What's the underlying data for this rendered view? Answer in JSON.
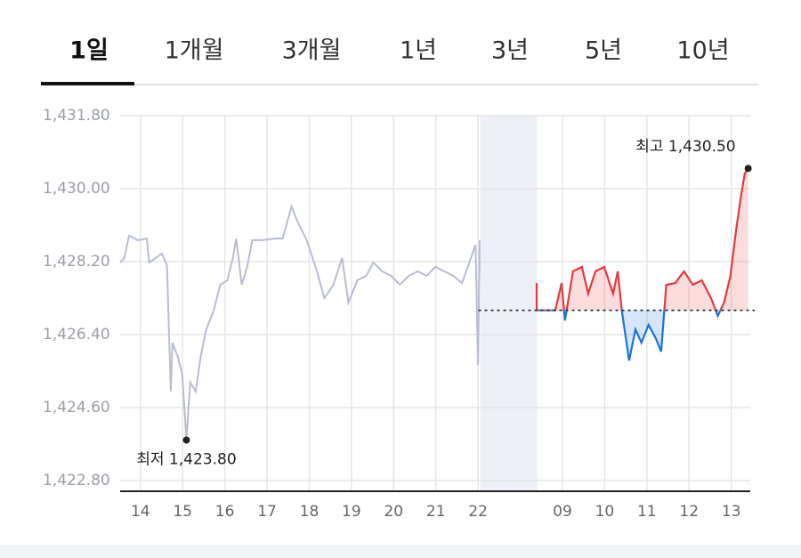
{
  "tabs": [
    "1일",
    "1개월",
    "3개월",
    "1년",
    "3년",
    "5년",
    "10년"
  ],
  "active_tab": 0,
  "chart_data": {
    "type": "line",
    "ylim": [
      1422.8,
      1431.8
    ],
    "yticks": [
      {
        "value": 1422.8,
        "label": "1,422.80"
      },
      {
        "value": 1424.6,
        "label": "1,424.60"
      },
      {
        "value": 1426.4,
        "label": "1,426.40"
      },
      {
        "value": 1428.2,
        "label": "1,428.20"
      },
      {
        "value": 1430.0,
        "label": "1,430.00"
      },
      {
        "value": 1431.8,
        "label": "1,431.80"
      }
    ],
    "xlim": [
      -0.48,
      14.45
    ],
    "xticks": [
      {
        "value": 0,
        "label": "14"
      },
      {
        "value": 1,
        "label": "15"
      },
      {
        "value": 2,
        "label": "16"
      },
      {
        "value": 3,
        "label": "17"
      },
      {
        "value": 4,
        "label": "18"
      },
      {
        "value": 5,
        "label": "19"
      },
      {
        "value": 6,
        "label": "20"
      },
      {
        "value": 7,
        "label": "21"
      },
      {
        "value": 8,
        "label": "22"
      },
      {
        "value": 10,
        "label": "09"
      },
      {
        "value": 11,
        "label": "10"
      },
      {
        "value": 12,
        "label": "11"
      },
      {
        "value": 13,
        "label": "12"
      },
      {
        "value": 14,
        "label": "13"
      }
    ],
    "grid": true,
    "shaded_range": [
      8.05,
      9.4
    ],
    "reference_line": 1427.0,
    "series": [
      {
        "color": "#b9bdd2",
        "x": [
          -0.48,
          -0.38,
          -0.27,
          -0.06,
          0.15,
          0.21,
          0.36,
          0.51,
          0.63,
          0.72,
          0.76,
          0.88,
          0.99,
          1.09,
          1.18,
          1.31,
          1.43,
          1.56,
          1.73,
          1.89,
          2.06,
          2.19,
          2.27,
          2.4,
          2.53,
          2.65,
          2.88,
          3.2,
          3.37,
          3.58,
          3.73,
          3.94,
          4.15,
          4.36,
          4.57,
          4.78,
          4.93,
          5.14,
          5.35,
          5.52,
          5.73,
          5.94,
          6.15,
          6.36,
          6.57,
          6.78,
          6.99,
          7.2,
          7.41,
          7.62,
          7.83,
          7.94,
          8.0,
          8.04
        ],
        "values": [
          1428.18,
          1428.29,
          1428.84,
          1428.73,
          1428.77,
          1428.18,
          1428.29,
          1428.4,
          1428.11,
          1425.0,
          1426.2,
          1425.87,
          1425.43,
          1423.8,
          1425.22,
          1425.0,
          1425.87,
          1426.53,
          1426.97,
          1427.63,
          1427.74,
          1428.29,
          1428.77,
          1427.63,
          1428.07,
          1428.73,
          1428.73,
          1428.77,
          1428.77,
          1429.56,
          1429.17,
          1428.73,
          1428.07,
          1427.3,
          1427.63,
          1428.29,
          1427.19,
          1427.74,
          1427.85,
          1428.18,
          1427.96,
          1427.85,
          1427.63,
          1427.85,
          1427.96,
          1427.85,
          1428.07,
          1427.96,
          1427.85,
          1427.67,
          1428.29,
          1428.62,
          1425.65,
          1428.73
        ]
      },
      {
        "color": "#e23b3f",
        "color_down": "#1a74d8",
        "x": [
          9.39,
          9.39,
          9.83,
          9.98,
          10.06,
          10.25,
          10.46,
          10.61,
          10.78,
          10.99,
          11.2,
          11.31,
          11.41,
          11.58,
          11.73,
          11.87,
          12.04,
          12.21,
          12.34,
          12.46,
          12.67,
          12.88,
          13.09,
          13.3,
          13.52,
          13.68,
          13.83,
          13.98,
          14.11,
          14.23,
          14.32,
          14.4
        ],
        "values": [
          1427.67,
          1427.0,
          1427.0,
          1427.67,
          1426.75,
          1427.96,
          1428.07,
          1427.41,
          1427.96,
          1428.07,
          1427.41,
          1427.96,
          1426.97,
          1425.76,
          1426.53,
          1426.2,
          1426.64,
          1426.31,
          1425.98,
          1427.63,
          1427.67,
          1427.96,
          1427.63,
          1427.74,
          1427.3,
          1426.86,
          1427.19,
          1427.85,
          1428.95,
          1429.82,
          1430.37,
          1430.5
        ]
      }
    ],
    "annotations": [
      {
        "text": "최저 1,423.80",
        "x": 1.09,
        "y": 1423.8,
        "position": "below"
      },
      {
        "text": "최고 1,430.50",
        "x": 14.4,
        "y": 1430.5,
        "position": "above"
      }
    ]
  }
}
